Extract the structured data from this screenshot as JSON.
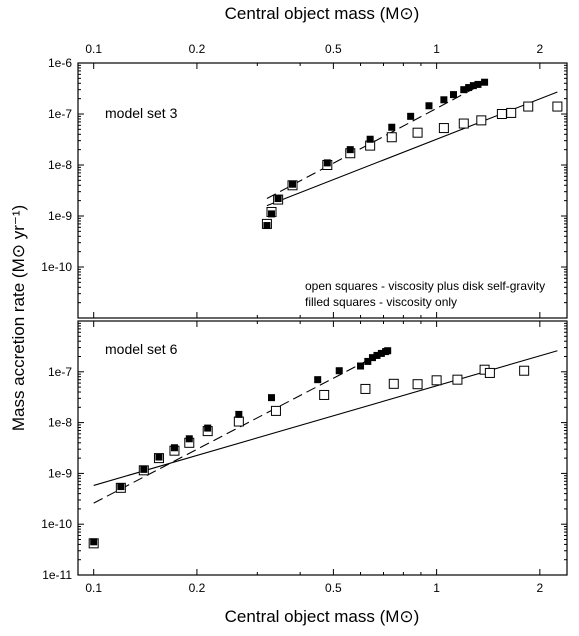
{
  "chart_data": {
    "type": "scatter",
    "top_axis_label": "Central object mass (M⊙)",
    "xlabel": "Central object mass (M⊙)",
    "ylabel": "Mass accretion rate (M⊙ yr⁻¹)",
    "x_scale": "log",
    "y_scale": "log",
    "xlim": [
      0.09,
      2.4
    ],
    "x_ticks": [
      0.1,
      0.2,
      0.5,
      1,
      2
    ],
    "x_tick_labels": [
      "0.1",
      "0.2",
      "0.5",
      "1",
      "2"
    ],
    "panels": [
      {
        "label": "model set 3",
        "ylim": [
          1e-11,
          1e-06
        ],
        "y_ticks": [
          1e-10,
          1e-09,
          1e-08,
          1e-07,
          1e-06
        ],
        "y_tick_labels": [
          "1e-10",
          "1e-9",
          "1e-8",
          "1e-7",
          "1e-6"
        ],
        "legend": [
          "open squares - viscosity plus disk self-gravity",
          "filled squares - viscosity only"
        ],
        "series": [
          {
            "marker": "open-square",
            "x": [
              0.32,
              0.33,
              0.345,
              0.38,
              0.48,
              0.56,
              0.64,
              0.74,
              0.88,
              1.05,
              1.2,
              1.35,
              1.55,
              1.65,
              1.85,
              2.25
            ],
            "y": [
              7e-10,
              1.2e-09,
              2.1e-09,
              4e-09,
              1e-08,
              1.7e-08,
              2.4e-08,
              3.5e-08,
              4.3e-08,
              5.3e-08,
              6.5e-08,
              7.5e-08,
              1e-07,
              1.05e-07,
              1.4e-07,
              1.4e-07
            ]
          },
          {
            "marker": "filled-square",
            "x": [
              0.32,
              0.33,
              0.345,
              0.38,
              0.48,
              0.56,
              0.64,
              0.74,
              0.84,
              0.95,
              1.05,
              1.12,
              1.2,
              1.24,
              1.28,
              1.32,
              1.38
            ],
            "y": [
              6.5e-10,
              1.1e-09,
              2.2e-09,
              4.2e-09,
              1.1e-08,
              2e-08,
              3.2e-08,
              5.5e-08,
              9e-08,
              1.45e-07,
              1.9e-07,
              2.4e-07,
              3e-07,
              3.3e-07,
              3.6e-07,
              3.8e-07,
              4.2e-07
            ]
          }
        ],
        "fits": [
          {
            "style": "solid",
            "x": [
              0.32,
              2.25
            ],
            "y": [
              1.6e-09,
              2.7e-07
            ]
          },
          {
            "style": "dashed",
            "x": [
              0.32,
              1.4
            ],
            "y": [
              2.2e-09,
              4.3e-07
            ]
          }
        ]
      },
      {
        "label": "model set 6",
        "ylim": [
          1e-11,
          1e-06
        ],
        "y_ticks": [
          1e-11,
          1e-10,
          1e-09,
          1e-08,
          1e-07
        ],
        "y_tick_labels": [
          "1e-11",
          "1e-10",
          "1e-9",
          "1e-8",
          "1e-7"
        ],
        "series": [
          {
            "marker": "open-square",
            "x": [
              0.1,
              0.12,
              0.14,
              0.155,
              0.172,
              0.19,
              0.215,
              0.265,
              0.34,
              0.47,
              0.62,
              0.75,
              0.88,
              1.0,
              1.15,
              1.38,
              1.43,
              1.8
            ],
            "y": [
              4.2e-11,
              5.2e-10,
              1.15e-09,
              2e-09,
              2.8e-09,
              4e-09,
              6.8e-09,
              1.05e-08,
              1.7e-08,
              3.5e-08,
              4.6e-08,
              5.8e-08,
              5.7e-08,
              6.8e-08,
              7e-08,
              1.1e-07,
              9.5e-08,
              1.05e-07
            ]
          },
          {
            "marker": "filled-square",
            "x": [
              0.1,
              0.12,
              0.14,
              0.155,
              0.172,
              0.19,
              0.215,
              0.265,
              0.33,
              0.45,
              0.52,
              0.6,
              0.63,
              0.65,
              0.67,
              0.69,
              0.71,
              0.72
            ],
            "y": [
              4.5e-11,
              5.5e-10,
              1.2e-09,
              2.1e-09,
              3.2e-09,
              4.8e-09,
              7.8e-09,
              1.45e-08,
              3.1e-08,
              7e-08,
              1.05e-07,
              1.3e-07,
              1.6e-07,
              1.9e-07,
              2.1e-07,
              2.3e-07,
              2.5e-07,
              2.6e-07
            ]
          }
        ],
        "fits": [
          {
            "style": "solid",
            "x": [
              0.1,
              2.25
            ],
            "y": [
              5.8e-10,
              2.6e-07
            ]
          },
          {
            "style": "dashed",
            "x": [
              0.1,
              0.72
            ],
            "y": [
              2.6e-10,
              2.7e-07
            ]
          }
        ]
      }
    ]
  }
}
